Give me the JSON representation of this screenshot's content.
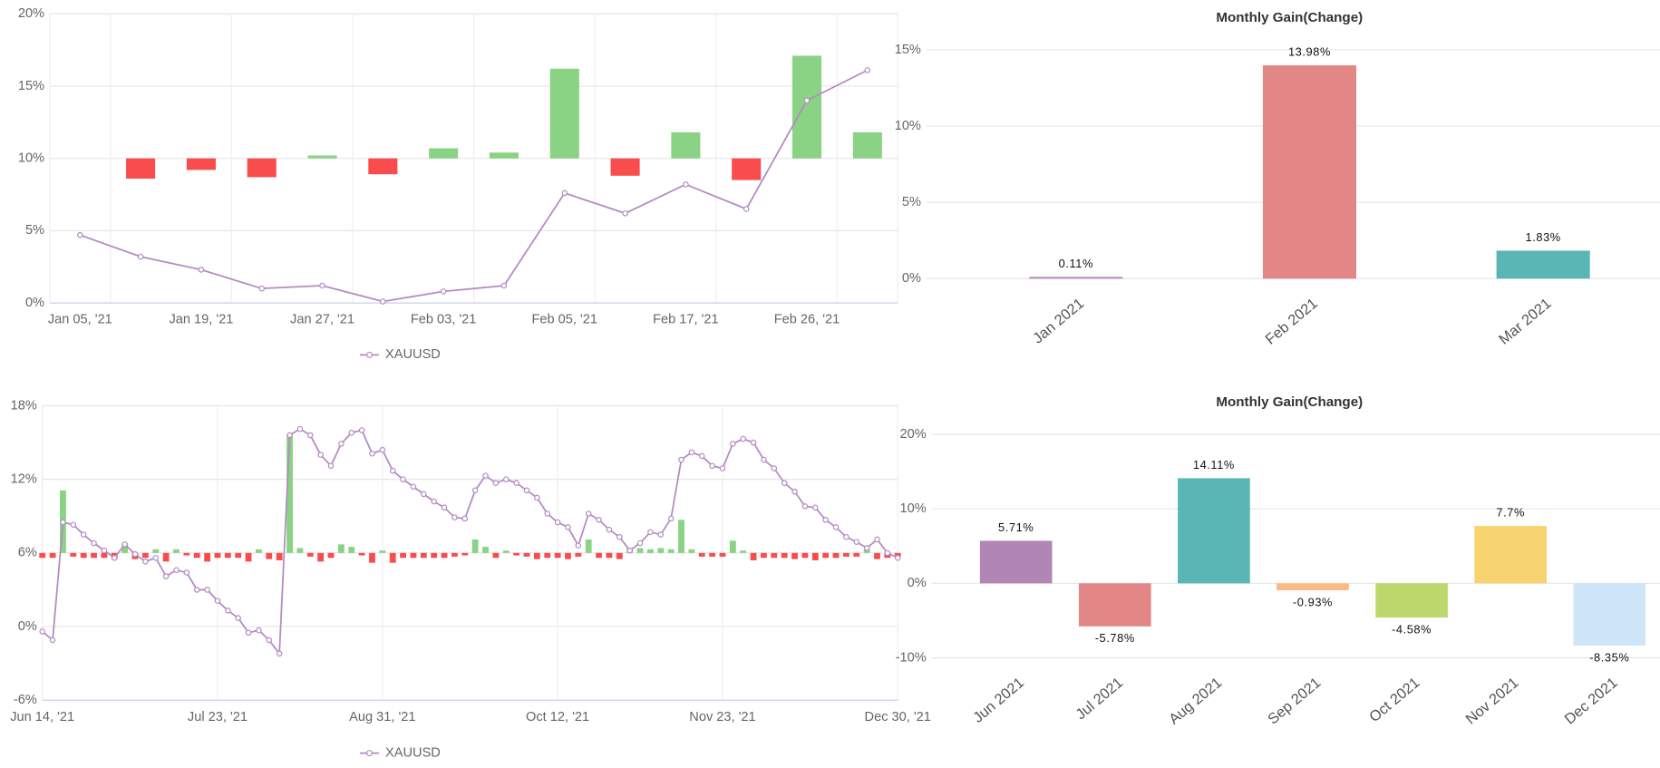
{
  "chart_data": [
    {
      "type": "combo",
      "categories": [
        "Jan 05, '21",
        null,
        "Jan 19, '21",
        null,
        "Jan 27, '21",
        null,
        "Feb 03, '21",
        null,
        "Feb 05, '21",
        null,
        "Feb 17, '21",
        null,
        "Feb 26, '21",
        null
      ],
      "series": [
        {
          "name": "XAUUSD",
          "color": "#b48ac4",
          "values": [
            4.7,
            3.2,
            2.3,
            1.0,
            1.2,
            0.1,
            0.8,
            1.2,
            7.6,
            6.2,
            8.2,
            6.5,
            14.0,
            16.1
          ]
        },
        {
          "axis": "y2",
          "positive_color": "#8ad284",
          "negative_color": "#f94c4c",
          "values": [
            null,
            -1.4,
            -0.8,
            -1.3,
            0.2,
            -1.1,
            0.7,
            0.4,
            6.2,
            -1.2,
            1.8,
            -1.5,
            7.1,
            1.8
          ]
        }
      ],
      "ylim": [
        0,
        20
      ],
      "yticks": [
        {
          "value": 0,
          "label": "0%"
        },
        {
          "value": 5,
          "label": "5%"
        },
        {
          "value": 10,
          "label": "10%"
        },
        {
          "value": 15,
          "label": "15%"
        },
        {
          "value": 20,
          "label": "20%"
        }
      ],
      "y2lim": [
        -10,
        10
      ],
      "grid": true,
      "legend": "bottom"
    },
    {
      "type": "bar",
      "title": "Monthly Gain(Change)",
      "categories": [
        "Jan 2021",
        "Feb 2021",
        "Mar 2021"
      ],
      "values": [
        0.11,
        13.98,
        1.83
      ],
      "value_labels": [
        "0.11%",
        "13.98%",
        "1.83%"
      ],
      "colors": [
        "#b186b5",
        "#e28785",
        "#5ab5b5"
      ],
      "ylim": [
        0,
        15
      ],
      "yticks": [
        {
          "value": 0,
          "label": "0%"
        },
        {
          "value": 5,
          "label": "5%"
        },
        {
          "value": 10,
          "label": "10%"
        },
        {
          "value": 15,
          "label": "15%"
        }
      ],
      "grid": true
    },
    {
      "type": "combo",
      "categories": [
        "Jun 14, '21",
        null,
        null,
        null,
        null,
        null,
        null,
        null,
        null,
        null,
        null,
        null,
        null,
        null,
        null,
        null,
        null,
        "Jul 23, '21",
        null,
        null,
        null,
        null,
        null,
        null,
        null,
        null,
        null,
        null,
        null,
        null,
        null,
        null,
        null,
        "Aug 31, '21",
        null,
        null,
        null,
        null,
        null,
        null,
        null,
        null,
        null,
        null,
        null,
        null,
        null,
        null,
        null,
        null,
        "Oct 12, '21",
        null,
        null,
        null,
        null,
        null,
        null,
        null,
        null,
        null,
        null,
        null,
        null,
        null,
        null,
        null,
        "Nov 23, '21",
        null,
        null,
        null,
        null,
        null,
        null,
        null,
        null,
        null,
        null,
        null,
        null,
        null,
        null,
        null,
        null,
        "Dec 30, '21"
      ],
      "series": [
        {
          "name": "XAUUSD",
          "color": "#b48ac4",
          "values": [
            -0.4,
            -1.1,
            8.5,
            8.3,
            7.5,
            6.8,
            6.2,
            5.6,
            6.7,
            5.9,
            5.3,
            5.6,
            4.1,
            4.6,
            4.4,
            3.0,
            3.0,
            2.1,
            1.3,
            0.7,
            -0.5,
            -0.3,
            -1.1,
            -2.2,
            15.6,
            16.1,
            15.6,
            14.0,
            13.1,
            14.9,
            15.8,
            16.0,
            14.1,
            14.4,
            12.7,
            12.0,
            11.4,
            10.8,
            10.2,
            9.7,
            8.9,
            8.8,
            11.1,
            12.3,
            11.7,
            12.0,
            11.7,
            11.1,
            10.5,
            9.2,
            8.5,
            8.1,
            6.6,
            9.2,
            8.7,
            7.9,
            7.3,
            6.2,
            6.8,
            7.7,
            7.5,
            8.8,
            13.6,
            14.2,
            13.9,
            13.1,
            12.9,
            14.9,
            15.3,
            15.0,
            13.6,
            12.9,
            11.7,
            11.0,
            9.8,
            9.7,
            8.7,
            8.1,
            7.3,
            6.9,
            6.4,
            7.1,
            6.0,
            5.6
          ]
        },
        {
          "axis": "y2",
          "positive_color": "#8ad284",
          "negative_color": "#f94c4c",
          "values": [
            -0.4,
            -0.4,
            5.1,
            -0.3,
            -0.4,
            -0.4,
            -0.4,
            -0.5,
            0.8,
            -0.5,
            -0.4,
            0.3,
            -0.7,
            0.3,
            -0.2,
            -0.4,
            -0.7,
            -0.4,
            -0.4,
            -0.4,
            -0.7,
            0.3,
            -0.5,
            -0.6,
            9.7,
            0.4,
            -0.3,
            -0.7,
            -0.4,
            0.7,
            0.5,
            -0.2,
            -0.8,
            0.2,
            -0.8,
            -0.4,
            -0.4,
            -0.4,
            -0.4,
            -0.4,
            -0.3,
            -0.2,
            1.1,
            0.5,
            -0.4,
            0.2,
            -0.2,
            -0.3,
            -0.5,
            -0.4,
            -0.4,
            -0.5,
            -0.3,
            1.1,
            -0.4,
            -0.4,
            -0.5,
            0.4,
            0.4,
            0.3,
            0.4,
            0.3,
            2.7,
            0.3,
            -0.3,
            -0.3,
            -0.3,
            1.0,
            0.2,
            -0.6,
            -0.4,
            -0.4,
            -0.4,
            -0.5,
            -0.4,
            -0.6,
            -0.4,
            -0.4,
            -0.3,
            -0.3,
            0.3,
            -0.5,
            -0.4,
            -0.3
          ]
        }
      ],
      "ylim": [
        -6,
        18
      ],
      "yticks": [
        {
          "value": -6,
          "label": "-6%"
        },
        {
          "value": 0,
          "label": "0%"
        },
        {
          "value": 6,
          "label": "6%"
        },
        {
          "value": 12,
          "label": "12%"
        },
        {
          "value": 18,
          "label": "18%"
        }
      ],
      "y2lim": [
        -12,
        12
      ],
      "grid": true,
      "legend": "bottom"
    },
    {
      "type": "bar",
      "title": "Monthly Gain(Change)",
      "categories": [
        "Jun 2021",
        "Jul 2021",
        "Aug 2021",
        "Sep 2021",
        "Oct 2021",
        "Nov 2021",
        "Dec 2021"
      ],
      "values": [
        5.71,
        -5.78,
        14.11,
        -0.93,
        -4.58,
        7.7,
        -8.35
      ],
      "value_labels": [
        "5.71%",
        "-5.78%",
        "14.11%",
        "-0.93%",
        "-4.58%",
        "7.7%",
        "-8.35%"
      ],
      "colors": [
        "#b186b5",
        "#e28785",
        "#5ab5b5",
        "#fbb985",
        "#bcd76c",
        "#f6d36f",
        "#cfe6f8"
      ],
      "ylim": [
        -10,
        20
      ],
      "yticks": [
        {
          "value": -10,
          "label": "-10%"
        },
        {
          "value": 0,
          "label": "0%"
        },
        {
          "value": 10,
          "label": "10%"
        },
        {
          "value": 20,
          "label": "20%"
        }
      ],
      "grid": true
    }
  ]
}
